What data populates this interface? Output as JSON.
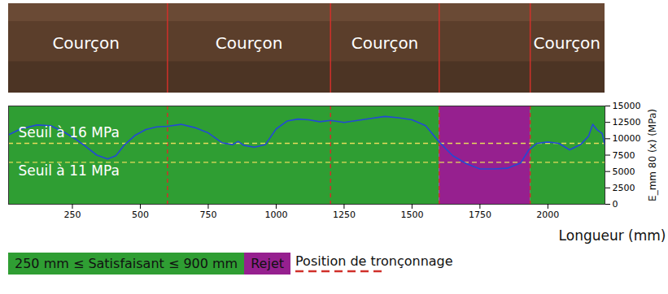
{
  "chart_data": {
    "type": "line",
    "x_label": "Longueur (mm)",
    "y_label": "E_mm 80 (x) (MPa)",
    "xlim": [
      15,
      2210
    ],
    "xticks": [
      250,
      500,
      750,
      1000,
      1250,
      1500,
      1750,
      2000
    ],
    "ylim": [
      0,
      15000
    ],
    "yticks": [
      0,
      2500,
      5000,
      7500,
      10000,
      12500,
      15000
    ],
    "x": [
      15,
      60,
      120,
      170,
      220,
      260,
      300,
      340,
      380,
      410,
      440,
      480,
      520,
      560,
      600,
      650,
      700,
      750,
      800,
      840,
      860,
      880,
      920,
      960,
      1000,
      1040,
      1080,
      1120,
      1160,
      1200,
      1250,
      1300,
      1350,
      1400,
      1450,
      1500,
      1550,
      1600,
      1650,
      1700,
      1750,
      1800,
      1850,
      1900,
      1930,
      1960,
      2000,
      2040,
      2080,
      2120,
      2150,
      2165,
      2180,
      2200,
      2210
    ],
    "values": [
      10600,
      11500,
      12100,
      12000,
      11000,
      10000,
      8800,
      7500,
      6900,
      7400,
      9000,
      10500,
      11400,
      11800,
      11900,
      12200,
      11700,
      10900,
      9400,
      9100,
      9600,
      9000,
      8700,
      9100,
      11500,
      12700,
      13000,
      12900,
      12600,
      12800,
      12500,
      12800,
      13100,
      13400,
      13200,
      12900,
      12000,
      9500,
      7400,
      6200,
      5400,
      5400,
      5500,
      6300,
      8300,
      9300,
      9500,
      9300,
      8300,
      9100,
      10400,
      12200,
      11400,
      10800,
      9000
    ],
    "color": "#2349d6",
    "thresholds": [
      {
        "label": "Seuil à 16 MPa",
        "value": 9300,
        "color": "#e6dc5a"
      },
      {
        "label": "Seuil à 11 MPa",
        "value": 6400,
        "color": "#e6dc5a"
      }
    ],
    "zones": [
      {
        "name": "250 mm ≤ Satisfaisant ≤ 900 mm",
        "color": "#2f9e33",
        "segments": [
          [
            15,
            1600
          ],
          [
            1935,
            2210
          ]
        ]
      },
      {
        "name": "Rejet",
        "color": "#96208f",
        "segments": [
          [
            1600,
            1935
          ]
        ]
      }
    ],
    "cuts": {
      "name": "Position de tronçonnage",
      "color": "#d0302a",
      "values": [
        600,
        1200,
        1600,
        1935
      ]
    },
    "sections": [
      {
        "label": "Courçon",
        "x": 300
      },
      {
        "label": "Courçon",
        "x": 900
      },
      {
        "label": "Courçon",
        "x": 1400
      },
      {
        "label": "Courçon",
        "x": 2070
      }
    ]
  }
}
